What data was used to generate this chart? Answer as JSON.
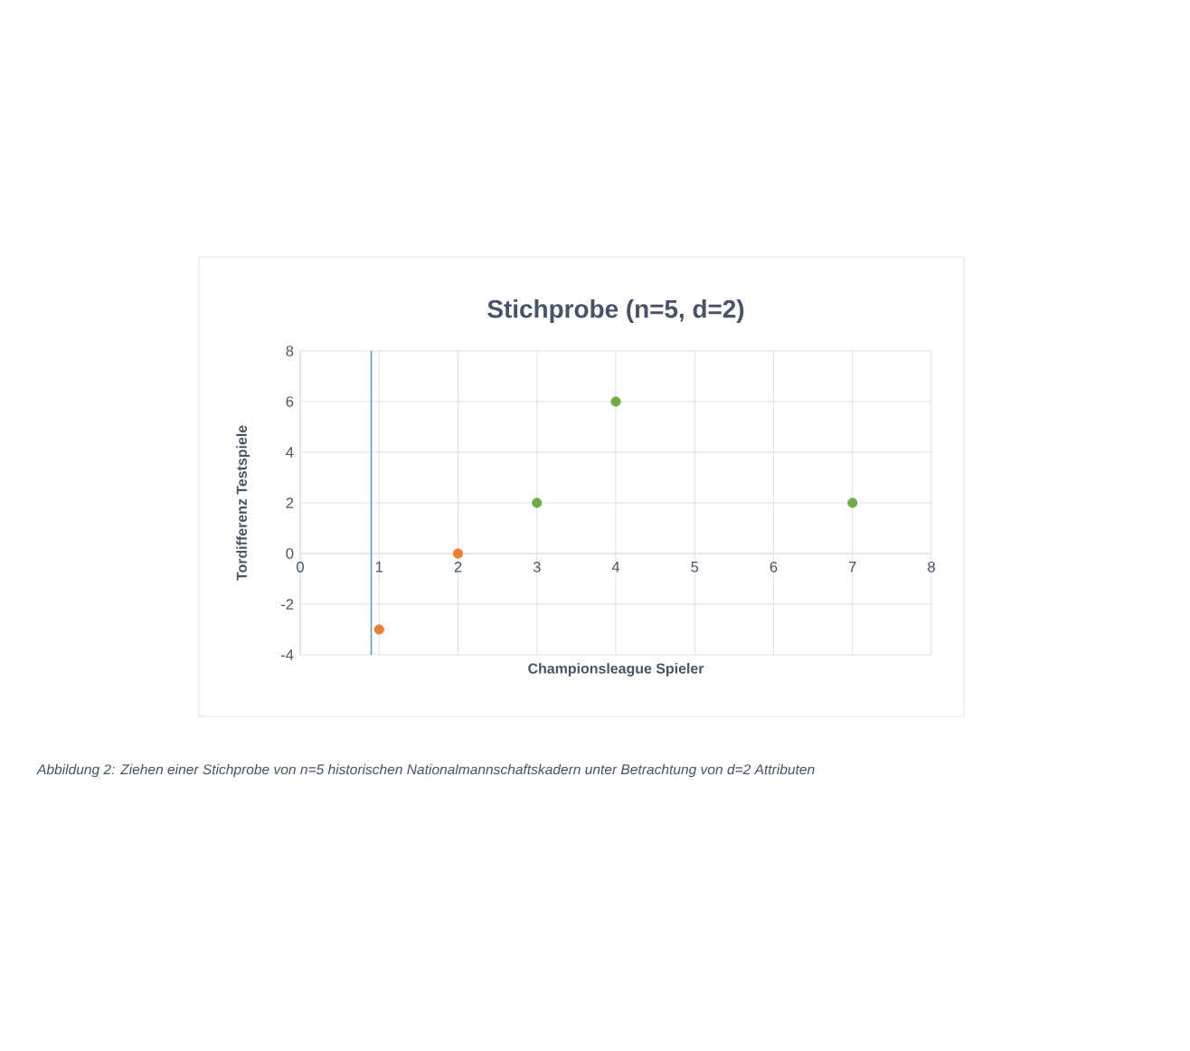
{
  "chart_data": {
    "type": "scatter",
    "title": "Stichprobe (n=5, d=2)",
    "xlabel": "Championsleague Spieler",
    "ylabel": "Tordifferenz Testspiele",
    "series": [
      {
        "color": "#ed7d31",
        "x": [
          1,
          2
        ],
        "values": [
          -3,
          0
        ]
      },
      {
        "color": "#70ad47",
        "x": [
          3,
          4,
          7
        ],
        "values": [
          2,
          6,
          2
        ]
      }
    ],
    "xlim": [
      0,
      8
    ],
    "ylim": [
      -4,
      8
    ],
    "xticks": [
      0,
      1,
      2,
      3,
      4,
      5,
      6,
      7,
      8
    ],
    "yticks": [
      -4,
      -2,
      0,
      2,
      4,
      6,
      8
    ],
    "grid": true,
    "marker": "circle",
    "ref_lines": [
      {
        "axis": "x",
        "value": 0.9,
        "color": "#5b9bd5"
      }
    ],
    "annotations": [
      "Abbildung 2: Ziehen einer Stichprobe von n=5 historischen Nationalmannschaftskadern unter Betrachtung von d=2 Attributen"
    ]
  }
}
